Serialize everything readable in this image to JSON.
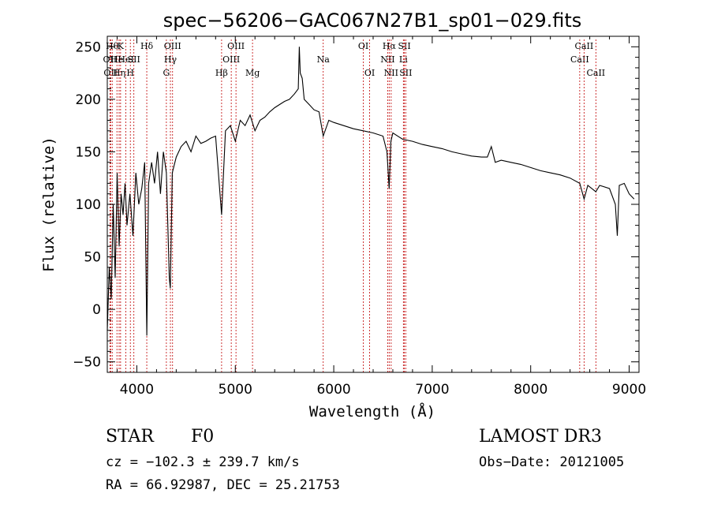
{
  "chart_data": {
    "type": "line",
    "title": "spec−56206−GAC067N27B1_sp01−029.fits",
    "xlabel": "Wavelength (Å)",
    "ylabel": "Flux (relative)",
    "xlim": [
      3700,
      9100
    ],
    "ylim": [
      -60,
      260
    ],
    "xticks": [
      4000,
      5000,
      6000,
      7000,
      8000,
      9000
    ],
    "xtick_labels": [
      "4000",
      "5000",
      "6000",
      "7000",
      "8000",
      "9000"
    ],
    "yticks": [
      -50,
      0,
      50,
      100,
      150,
      200,
      250
    ],
    "ytick_labels": [
      "−50",
      "0",
      "50",
      "100",
      "150",
      "200",
      "250"
    ],
    "series": [
      {
        "name": "flux",
        "x": [
          3700,
          3720,
          3740,
          3760,
          3780,
          3800,
          3820,
          3840,
          3860,
          3880,
          3900,
          3930,
          3960,
          3990,
          4020,
          4050,
          4080,
          4101,
          4120,
          4150,
          4180,
          4210,
          4240,
          4270,
          4300,
          4330,
          4340,
          4360,
          4400,
          4450,
          4500,
          4550,
          4600,
          4650,
          4700,
          4750,
          4800,
          4861,
          4900,
          4950,
          5000,
          5050,
          5100,
          5150,
          5200,
          5250,
          5300,
          5350,
          5400,
          5450,
          5500,
          5550,
          5600,
          5640,
          5650,
          5660,
          5680,
          5700,
          5750,
          5800,
          5850,
          5893,
          5950,
          6000,
          6100,
          6200,
          6300,
          6400,
          6500,
          6540,
          6563,
          6580,
          6600,
          6700,
          6800,
          6900,
          7000,
          7100,
          7200,
          7300,
          7400,
          7500,
          7560,
          7600,
          7640,
          7700,
          7800,
          7900,
          8000,
          8100,
          8200,
          8300,
          8400,
          8498,
          8542,
          8580,
          8662,
          8700,
          8800,
          8860,
          8880,
          8900,
          8950,
          9000,
          9050
        ],
        "values": [
          -20,
          40,
          10,
          100,
          30,
          130,
          60,
          110,
          90,
          120,
          80,
          110,
          70,
          130,
          100,
          115,
          140,
          -25,
          120,
          140,
          120,
          150,
          110,
          150,
          130,
          30,
          20,
          130,
          145,
          155,
          160,
          150,
          165,
          158,
          160,
          163,
          165,
          90,
          170,
          175,
          160,
          180,
          175,
          185,
          170,
          180,
          183,
          188,
          192,
          195,
          198,
          200,
          205,
          210,
          250,
          225,
          220,
          200,
          195,
          190,
          188,
          165,
          180,
          178,
          175,
          172,
          170,
          168,
          165,
          150,
          115,
          160,
          168,
          162,
          160,
          157,
          155,
          153,
          150,
          148,
          146,
          145,
          145,
          155,
          140,
          142,
          140,
          138,
          135,
          132,
          130,
          128,
          125,
          120,
          105,
          118,
          112,
          118,
          115,
          100,
          70,
          118,
          120,
          110,
          105
        ]
      }
    ],
    "lines": [
      {
        "x": 3727,
        "label": "OII",
        "row": 2
      },
      {
        "x": 3734,
        "label": "OII",
        "row": 3
      },
      {
        "x": 3750,
        "label": "Hθ",
        "row": 1
      },
      {
        "x": 3798,
        "label": "He",
        "row": 2
      },
      {
        "x": 3820,
        "label": "Hη",
        "row": 3
      },
      {
        "x": 3835,
        "label": "K",
        "row": 1
      },
      {
        "x": 3889,
        "label": "HeI",
        "row": 2
      },
      {
        "x": 3934,
        "label": "H",
        "row": 3
      },
      {
        "x": 3970,
        "label": "SII",
        "row": 2
      },
      {
        "x": 4101,
        "label": "Hδ",
        "row": 1
      },
      {
        "x": 4300,
        "label": "G",
        "row": 3
      },
      {
        "x": 4341,
        "label": "Hγ",
        "row": 2
      },
      {
        "x": 4363,
        "label": "OIII",
        "row": 1
      },
      {
        "x": 4861,
        "label": "Hβ",
        "row": 3
      },
      {
        "x": 4959,
        "label": "OIII",
        "row": 2
      },
      {
        "x": 5007,
        "label": "OIII",
        "row": 1
      },
      {
        "x": 5175,
        "label": "Mg",
        "row": 3
      },
      {
        "x": 5893,
        "label": "Na",
        "row": 2
      },
      {
        "x": 6300,
        "label": "OI",
        "row": 1
      },
      {
        "x": 6364,
        "label": "OI",
        "row": 3
      },
      {
        "x": 6548,
        "label": "NII",
        "row": 2
      },
      {
        "x": 6563,
        "label": "Hα",
        "row": 1
      },
      {
        "x": 6583,
        "label": "NII",
        "row": 3
      },
      {
        "x": 6707,
        "label": "Li",
        "row": 2
      },
      {
        "x": 6717,
        "label": "SII",
        "row": 1
      },
      {
        "x": 6731,
        "label": "SII",
        "row": 3
      },
      {
        "x": 8498,
        "label": "CaII",
        "row": 2
      },
      {
        "x": 8542,
        "label": "CaII",
        "row": 1
      },
      {
        "x": 8662,
        "label": "CaII",
        "row": 3
      }
    ]
  },
  "info": {
    "class_label": "STAR",
    "subclass": "F0",
    "survey": "LAMOST DR3",
    "cz": "cz = −102.3 ± 239.7 km/s",
    "obs_date": "Obs−Date: 20121005",
    "coords": "RA =  66.92987, DEC =  25.21753"
  }
}
